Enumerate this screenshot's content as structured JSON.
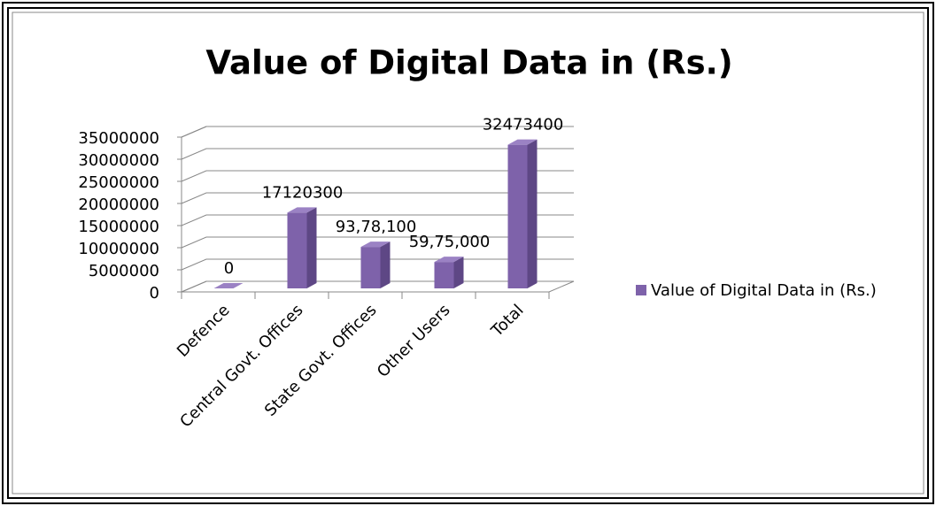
{
  "chart_data": {
    "type": "bar",
    "title": "Value of Digital Data in (Rs.)",
    "categories": [
      "Defence",
      "Central Govt. Offices",
      "State Govt. Offices",
      "Other Users",
      "Total"
    ],
    "series": [
      {
        "name": "Value of Digital Data in (Rs.)",
        "color": "#7e62aa",
        "values": [
          0,
          17120300,
          9378100,
          5975000,
          32473400
        ],
        "value_labels": [
          "0",
          "17120300",
          "93,78,100",
          "59,75,000",
          "32473400"
        ]
      }
    ],
    "ylim": [
      0,
      35000000
    ],
    "yticks": [
      0,
      5000000,
      10000000,
      15000000,
      20000000,
      25000000,
      30000000,
      35000000
    ],
    "grid": true,
    "legend": "right"
  }
}
